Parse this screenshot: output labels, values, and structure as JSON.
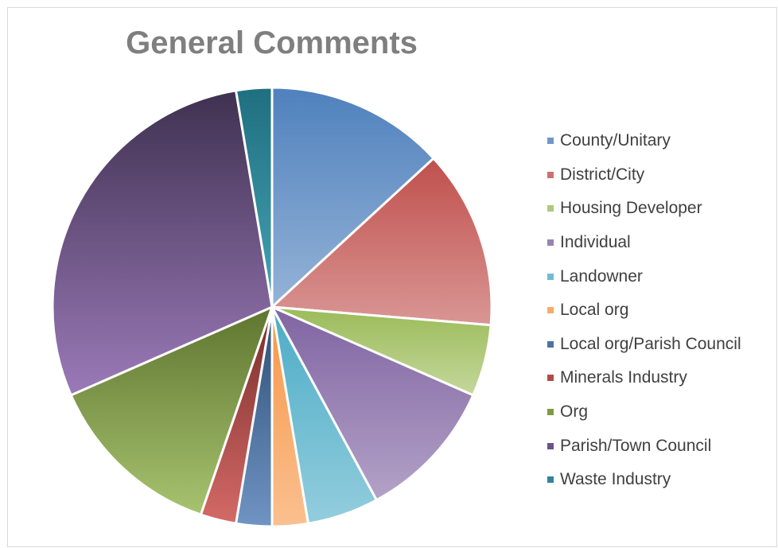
{
  "chart_data": {
    "type": "pie",
    "title": "General Comments",
    "legend_position": "right",
    "categories": [
      "County/Unitary",
      "District/City",
      "Housing Developer",
      "Individual",
      "Landowner",
      "Local org",
      "Local org/Parish Council",
      "Minerals Industry",
      "Org",
      "Parish/Town Council",
      "Waste Industry"
    ],
    "values": [
      5,
      5,
      2,
      4,
      2,
      1,
      1,
      1,
      5,
      11,
      1
    ],
    "colors": [
      [
        "#4f81bd",
        "#95b3d7"
      ],
      [
        "#c0504d",
        "#d99694"
      ],
      [
        "#9bbb59",
        "#c4d79b"
      ],
      [
        "#8064a2",
        "#b3a2c7"
      ],
      [
        "#4bacc6",
        "#93cddd"
      ],
      [
        "#f79646",
        "#fac090"
      ],
      [
        "#2c4d75",
        "#7094c3"
      ],
      [
        "#772c2a",
        "#d46a67"
      ],
      [
        "#5f7530",
        "#a7c36f"
      ],
      [
        "#3f3151",
        "#9b7ab8"
      ],
      [
        "#1f6f80",
        "#45a3b4"
      ]
    ],
    "legend_swatch_colors": [
      "#6f97c9",
      "#cd706e",
      "#afc97a",
      "#9983b4",
      "#6fbdd2",
      "#f8ab6b",
      "#4f73a0",
      "#b14b48",
      "#7f9a45",
      "#6b5487",
      "#2f8697"
    ]
  }
}
